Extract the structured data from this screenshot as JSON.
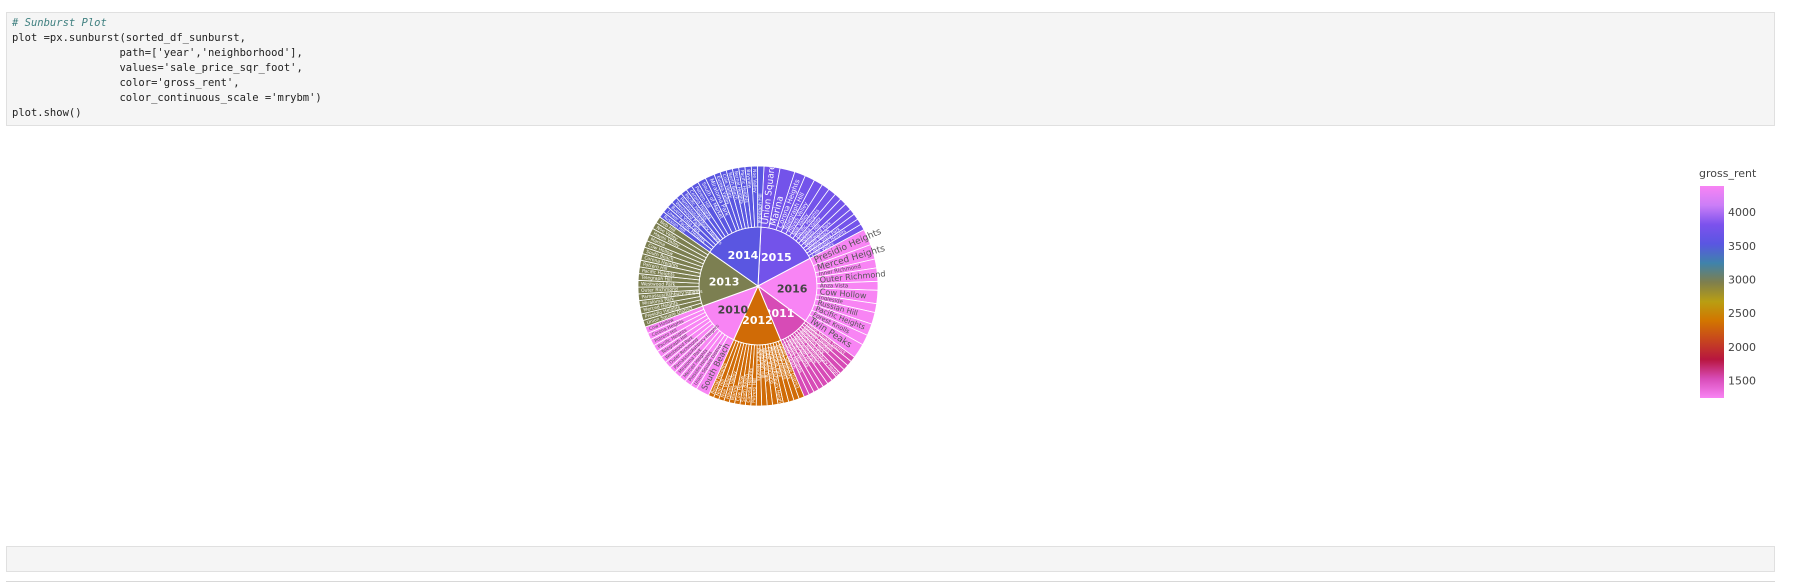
{
  "code_cell": {
    "lines": [
      "# Sunburst Plot",
      "plot =px.sunburst(sorted_df_sunburst,",
      "                 path=['year','neighborhood'],",
      "                 values='sale_price_sqr_foot',",
      "                 color='gross_rent',",
      "                 color_continuous_scale ='mrybm')",
      "plot.show()"
    ]
  },
  "chart_data": {
    "type": "sunburst",
    "colorbar": {
      "title": "gross_rent",
      "range": [
        1239,
        4390
      ],
      "ticks": [
        1500,
        2000,
        2500,
        3000,
        3500,
        4000
      ],
      "colorscale": [
        "#f884f4",
        "#d84cb8",
        "#b8163f",
        "#c7451e",
        "#d27500",
        "#b99e12",
        "#7f7f4d",
        "#3f83ab",
        "#5a56e2",
        "#7c52ed",
        "#cb7ef7",
        "#f884f4"
      ]
    },
    "years": [
      {
        "label": "2015",
        "gross_rent": 3739,
        "value": 220,
        "leaves": [
          {
            "label": "Union Square District",
            "value": 8.0
          },
          {
            "label": "Marina",
            "value": 7.5
          },
          {
            "label": "Corona Heights",
            "value": 5.5
          },
          {
            "label": "Telegraph Hill",
            "value": 5.0
          },
          {
            "label": "Hayes Valley",
            "value": 4.5
          },
          {
            "label": "Noe Valley",
            "value": 4.0
          },
          {
            "label": "Pacific Heights",
            "value": 4.0
          },
          {
            "label": "Eureka Valley",
            "value": 3.5
          },
          {
            "label": "Potrero Hill",
            "value": 3.5
          },
          {
            "label": "Westwood Park",
            "value": 3.5
          },
          {
            "label": "South Beach",
            "value": 3.0
          },
          {
            "label": "Buena Vista Park",
            "value": 3.0
          },
          {
            "label": "Clarendon Heights",
            "value": 3.0
          },
          {
            "label": "Cole Valley",
            "value": 3.0
          }
        ]
      },
      {
        "label": "2016",
        "gross_rent": 4390,
        "value": 240,
        "leaves": [
          {
            "label": "Presidio Heights",
            "value": 5.5
          },
          {
            "label": "Merced Heights",
            "value": 5.0
          },
          {
            "label": "Inner Richmond",
            "value": 3.0
          },
          {
            "label": "Outer Richmond",
            "value": 4.5
          },
          {
            "label": "Anza Vista",
            "value": 3.0
          },
          {
            "label": "Cow Hollow",
            "value": 4.5
          },
          {
            "label": "Ingleside",
            "value": 3.0
          },
          {
            "label": "Russian Hill",
            "value": 4.0
          },
          {
            "label": "Pacific Heights",
            "value": 4.0
          },
          {
            "label": "Forest Knolls",
            "value": 3.5
          },
          {
            "label": "Twin Peaks",
            "value": 5.0
          }
        ]
      },
      {
        "label": "2011",
        "gross_rent": 1530,
        "value": 115,
        "leaves": [
          {
            "label": "Union Square District",
            "value": 2.5
          },
          {
            "label": "Presidio Heights",
            "value": 2.5
          },
          {
            "label": "Merced Heights",
            "value": 2.5
          },
          {
            "label": "Miraloma Park",
            "value": 2.5
          },
          {
            "label": "Parnassus/Ashbury Heights",
            "value": 2.5
          },
          {
            "label": "Outer Richmond",
            "value": 2.5
          },
          {
            "label": "Westwood Park",
            "value": 2.5
          },
          {
            "label": "Telegraph Hill",
            "value": 2.5
          },
          {
            "label": "Pacific Heights",
            "value": 2.5
          },
          {
            "label": "Potrero Hill",
            "value": 2.5
          },
          {
            "label": "Corona Heights",
            "value": 2.5
          },
          {
            "label": "South Beach",
            "value": 2.5
          }
        ]
      },
      {
        "label": "2012",
        "gross_rent": 2324,
        "value": 175,
        "leaves": [
          {
            "label": "Union Square District",
            "value": 3.0
          },
          {
            "label": "Presidio Heights",
            "value": 3.0
          },
          {
            "label": "Merced Heights",
            "value": 3.0
          },
          {
            "label": "Miraloma Park",
            "value": 3.0
          },
          {
            "label": "Parnassus/Ashbury Heights",
            "value": 3.0
          },
          {
            "label": "Outer Richmond",
            "value": 3.0
          },
          {
            "label": "Westwood Park",
            "value": 3.0
          },
          {
            "label": "Telegraph Hill",
            "value": 3.0
          },
          {
            "label": "Pacific Heights",
            "value": 3.0
          },
          {
            "label": "Potrero Hill",
            "value": 3.0
          },
          {
            "label": "Corona Heights",
            "value": 3.0
          },
          {
            "label": "South Beach",
            "value": 3.0
          },
          {
            "label": "Cow Hollow",
            "value": 3.0
          },
          {
            "label": "Marina",
            "value": 3.0
          },
          {
            "label": "Hayes Valley",
            "value": 3.0
          },
          {
            "label": "Noe Valley",
            "value": 3.0
          },
          {
            "label": "Nob Hill",
            "value": 3.0
          },
          {
            "label": "Bernal Heights",
            "value": 3.0
          }
        ]
      },
      {
        "label": "2010",
        "gross_rent": 1239,
        "value": 170,
        "leaves": [
          {
            "label": "South Beach",
            "value": 6.0
          },
          {
            "label": "Union Square District",
            "value": 3.0
          },
          {
            "label": "Presidio Heights",
            "value": 3.0
          },
          {
            "label": "Merced Heights",
            "value": 3.0
          },
          {
            "label": "Miraloma Park",
            "value": 3.0
          },
          {
            "label": "Parnassus/Ashbury Heights",
            "value": 3.0
          },
          {
            "label": "Outer Richmond",
            "value": 3.0
          },
          {
            "label": "Westwood Park",
            "value": 3.0
          },
          {
            "label": "Telegraph Hill",
            "value": 3.0
          },
          {
            "label": "Pacific Heights",
            "value": 3.0
          },
          {
            "label": "Potrero Hill",
            "value": 3.0
          },
          {
            "label": "Corona Heights",
            "value": 3.0
          },
          {
            "label": "Cow Hollow",
            "value": 3.0
          }
        ]
      },
      {
        "label": "2013",
        "gross_rent": 2971,
        "value": 205,
        "leaves": [
          {
            "label": "Union Square District",
            "value": 3.0
          },
          {
            "label": "Presidio Heights",
            "value": 3.0
          },
          {
            "label": "Merced Heights",
            "value": 3.0
          },
          {
            "label": "Miraloma Park",
            "value": 3.0
          },
          {
            "label": "Parnassus/Ashbury Heights",
            "value": 3.0
          },
          {
            "label": "Outer Richmond",
            "value": 3.0
          },
          {
            "label": "Westwood Park",
            "value": 3.0
          },
          {
            "label": "Telegraph Hill",
            "value": 3.0
          },
          {
            "label": "Pacific Heights",
            "value": 3.0
          },
          {
            "label": "Potrero Hill",
            "value": 3.0
          },
          {
            "label": "Corona Heights",
            "value": 3.0
          },
          {
            "label": "South Beach",
            "value": 3.0
          },
          {
            "label": "Cow Hollow",
            "value": 3.0
          },
          {
            "label": "Marina",
            "value": 3.0
          },
          {
            "label": "Hayes Valley",
            "value": 3.0
          },
          {
            "label": "Noe Valley",
            "value": 3.0
          },
          {
            "label": "Nob Hill",
            "value": 3.0
          }
        ]
      },
      {
        "label": "2014",
        "gross_rent": 3528,
        "value": 215,
        "leaves": [
          {
            "label": "Russian Hill",
            "value": 3.0
          },
          {
            "label": "Lower Pacific Heights",
            "value": 3.0
          },
          {
            "label": "Buena Vista Park",
            "value": 3.0
          },
          {
            "label": "Westwood Park",
            "value": 3.0
          },
          {
            "label": "Parnassus/Ashbury Heights",
            "value": 3.0
          },
          {
            "label": "Pacific Heights",
            "value": 3.0
          },
          {
            "label": "Corona Heights",
            "value": 3.0
          },
          {
            "label": "Potrero Hill",
            "value": 3.5
          },
          {
            "label": "South of Market",
            "value": 4.0
          },
          {
            "label": "Miraloma Park",
            "value": 4.5
          },
          {
            "label": "Eureka Valley",
            "value": 3.0
          },
          {
            "label": "Cole Valley",
            "value": 3.0
          },
          {
            "label": "North Beach",
            "value": 3.0
          },
          {
            "label": "Bernal Heights",
            "value": 3.0
          },
          {
            "label": "Pacific Heights",
            "value": 3.0
          },
          {
            "label": "Bayview",
            "value": 3.0
          },
          {
            "label": "Noe Valley",
            "value": 3.0
          },
          {
            "label": "Telegraph Hill",
            "value": 3.0
          }
        ]
      }
    ]
  }
}
